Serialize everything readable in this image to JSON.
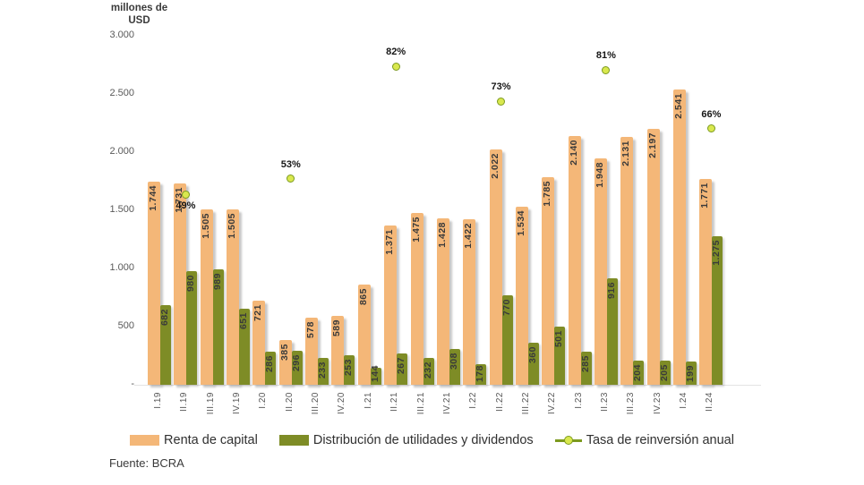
{
  "y_axis": {
    "title_line1": "millones  de",
    "title_line2": "USD"
  },
  "footer": {
    "source": "Fuente: BCRA"
  },
  "colors": {
    "renta": "#f4b778",
    "distribucion": "#7e8c26",
    "marker_fill": "#d9e84e",
    "marker_border": "#7c9a1f",
    "axis_text": "#595959",
    "bar_label_text": "#3a3a3a"
  },
  "chart_data": {
    "type": "bar",
    "title": "",
    "xlabel": "",
    "ylabel": "millones de USD",
    "ylim": [
      0,
      3000
    ],
    "grid": false,
    "legend_position": "bottom",
    "ytick_values": [
      3000,
      2500,
      2000,
      1500,
      1000,
      500,
      0
    ],
    "ytick_labels": [
      "3.000",
      "2.500",
      "2.000",
      "1.500",
      "1.000",
      "500",
      "-"
    ],
    "categories": [
      "I.19",
      "II.19",
      "III.19",
      "IV.19",
      "I.20",
      "II.20",
      "III.20",
      "IV.20",
      "I.21",
      "II.21",
      "III.21",
      "IV.21",
      "I.22",
      "II.22",
      "III.22",
      "IV.22",
      "I.23",
      "II.23",
      "III.23",
      "IV.23",
      "I.24",
      "II.24"
    ],
    "series": [
      {
        "name": "Renta de capital",
        "color": "#f4b778",
        "values": [
          1744,
          1731,
          1505,
          1505,
          721,
          385,
          578,
          589,
          865,
          1371,
          1475,
          1428,
          1422,
          2022,
          1534,
          1785,
          2140,
          1948,
          2131,
          2197,
          2541,
          1771
        ]
      },
      {
        "name": "Distribución de utilidades y dividendos",
        "color": "#7e8c26",
        "values": [
          682,
          980,
          989,
          651,
          286,
          296,
          233,
          253,
          144,
          267,
          232,
          308,
          178,
          770,
          360,
          501,
          285,
          916,
          204,
          205,
          199,
          1275
        ]
      }
    ],
    "markers": {
      "name": "Tasa de reinversión anual",
      "points": [
        {
          "category": "II.19",
          "pct": 49,
          "label": "49%",
          "label_below": true
        },
        {
          "category": "II.20",
          "pct": 53,
          "label": "53%"
        },
        {
          "category": "II.21",
          "pct": 82,
          "label": "82%"
        },
        {
          "category": "II.22",
          "pct": 73,
          "label": "73%"
        },
        {
          "category": "II.23",
          "pct": 81,
          "label": "81%"
        },
        {
          "category": "II.24",
          "pct": 66,
          "label": "66%"
        }
      ]
    }
  }
}
